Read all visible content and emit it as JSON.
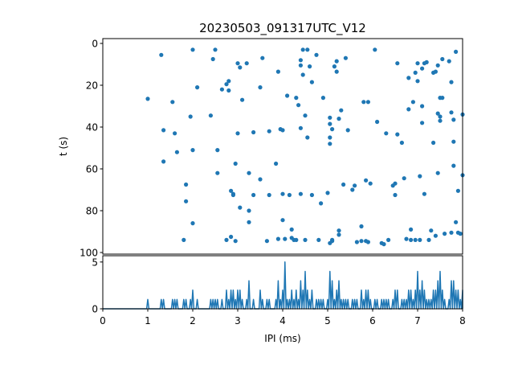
{
  "chart_data": [
    {
      "type": "scatter",
      "title": "20230503_091317UTC_V12",
      "xlabel": "",
      "ylabel": "t (s)",
      "xlim": [
        0,
        8
      ],
      "ylim": [
        100,
        0
      ],
      "y_inverted": true,
      "grid": false,
      "yticks": [
        0,
        20,
        40,
        60,
        80,
        100
      ],
      "marker_color": "#1f77b4",
      "points": [
        [
          1.0,
          26.5
        ],
        [
          1.3,
          5.5
        ],
        [
          1.35,
          41.5
        ],
        [
          1.35,
          56.5
        ],
        [
          1.55,
          28
        ],
        [
          1.6,
          43
        ],
        [
          1.65,
          52
        ],
        [
          1.8,
          94
        ],
        [
          1.85,
          67.5
        ],
        [
          1.85,
          75.5
        ],
        [
          1.95,
          35
        ],
        [
          2.0,
          3
        ],
        [
          2.0,
          51
        ],
        [
          2.0,
          86
        ],
        [
          2.1,
          21
        ],
        [
          2.4,
          34.5
        ],
        [
          2.45,
          7.5
        ],
        [
          2.5,
          3
        ],
        [
          2.55,
          51
        ],
        [
          2.55,
          62
        ],
        [
          2.65,
          22
        ],
        [
          2.75,
          19.5
        ],
        [
          2.75,
          94
        ],
        [
          2.8,
          18
        ],
        [
          2.8,
          22.5
        ],
        [
          2.85,
          70.5
        ],
        [
          2.85,
          92.5
        ],
        [
          2.9,
          72.5
        ],
        [
          2.9,
          72
        ],
        [
          2.95,
          57.5
        ],
        [
          2.95,
          94.5
        ],
        [
          3.0,
          9.5
        ],
        [
          3.0,
          43
        ],
        [
          3.05,
          11.5
        ],
        [
          3.05,
          78.5
        ],
        [
          3.1,
          27
        ],
        [
          3.2,
          9.5
        ],
        [
          3.25,
          62
        ],
        [
          3.25,
          80
        ],
        [
          3.25,
          85.5
        ],
        [
          3.35,
          42.5
        ],
        [
          3.35,
          72.5
        ],
        [
          3.5,
          21
        ],
        [
          3.5,
          65
        ],
        [
          3.55,
          7
        ],
        [
          3.65,
          94.5
        ],
        [
          3.7,
          42
        ],
        [
          3.7,
          72.5
        ],
        [
          3.85,
          57.5
        ],
        [
          3.9,
          13.5
        ],
        [
          3.9,
          93.5
        ],
        [
          3.95,
          41
        ],
        [
          4.0,
          41.5
        ],
        [
          4.0,
          72
        ],
        [
          4.0,
          84.5
        ],
        [
          4.05,
          93.5
        ],
        [
          4.1,
          25
        ],
        [
          4.15,
          72.5
        ],
        [
          4.2,
          89
        ],
        [
          4.2,
          93
        ],
        [
          4.25,
          94
        ],
        [
          4.3,
          26
        ],
        [
          4.3,
          94
        ],
        [
          4.35,
          29.5
        ],
        [
          4.4,
          8
        ],
        [
          4.4,
          10.5
        ],
        [
          4.4,
          40.5
        ],
        [
          4.4,
          72
        ],
        [
          4.45,
          3
        ],
        [
          4.45,
          15
        ],
        [
          4.5,
          34.5
        ],
        [
          4.5,
          94
        ],
        [
          4.55,
          3
        ],
        [
          4.55,
          45
        ],
        [
          4.6,
          11
        ],
        [
          4.65,
          18.5
        ],
        [
          4.65,
          72.5
        ],
        [
          4.75,
          5.5
        ],
        [
          4.8,
          94
        ],
        [
          4.85,
          76.5
        ],
        [
          4.9,
          26
        ],
        [
          5.0,
          71.5
        ],
        [
          5.05,
          95.5
        ],
        [
          5.05,
          35.5
        ],
        [
          5.05,
          38.5
        ],
        [
          5.05,
          45
        ],
        [
          5.05,
          48
        ],
        [
          5.1,
          41
        ],
        [
          5.1,
          94
        ],
        [
          5.1,
          94.5
        ],
        [
          5.15,
          11
        ],
        [
          5.2,
          8.5
        ],
        [
          5.2,
          13.5
        ],
        [
          5.25,
          36
        ],
        [
          5.25,
          89.5
        ],
        [
          5.25,
          91.5
        ],
        [
          5.3,
          32
        ],
        [
          5.35,
          67.5
        ],
        [
          5.4,
          7
        ],
        [
          5.45,
          41.5
        ],
        [
          5.55,
          70
        ],
        [
          5.6,
          68
        ],
        [
          5.65,
          95
        ],
        [
          5.75,
          94.5
        ],
        [
          5.75,
          87.5
        ],
        [
          5.8,
          28
        ],
        [
          5.85,
          65.5
        ],
        [
          5.85,
          94.5
        ],
        [
          5.9,
          95
        ],
        [
          5.9,
          28
        ],
        [
          5.95,
          67
        ],
        [
          6.05,
          3
        ],
        [
          6.1,
          37.5
        ],
        [
          6.2,
          95.5
        ],
        [
          6.25,
          96
        ],
        [
          6.3,
          43
        ],
        [
          6.35,
          94
        ],
        [
          6.45,
          68
        ],
        [
          6.5,
          72.5
        ],
        [
          6.5,
          67
        ],
        [
          6.55,
          43.5
        ],
        [
          6.55,
          9.5
        ],
        [
          6.65,
          47.5
        ],
        [
          6.7,
          64.5
        ],
        [
          6.75,
          93.5
        ],
        [
          6.8,
          16.5
        ],
        [
          6.8,
          31.5
        ],
        [
          6.85,
          89
        ],
        [
          6.85,
          94
        ],
        [
          6.9,
          28
        ],
        [
          6.95,
          14
        ],
        [
          6.95,
          94
        ],
        [
          7.0,
          9.5
        ],
        [
          7.0,
          18
        ],
        [
          7.05,
          63.5
        ],
        [
          7.05,
          94
        ],
        [
          7.1,
          12
        ],
        [
          7.1,
          30
        ],
        [
          7.1,
          38
        ],
        [
          7.15,
          9.5
        ],
        [
          7.15,
          72
        ],
        [
          7.2,
          9
        ],
        [
          7.25,
          94
        ],
        [
          7.3,
          89.5
        ],
        [
          7.35,
          47.5
        ],
        [
          7.35,
          14
        ],
        [
          7.4,
          13.5
        ],
        [
          7.4,
          92
        ],
        [
          7.45,
          62
        ],
        [
          7.45,
          10.5
        ],
        [
          7.45,
          33.5
        ],
        [
          7.5,
          35
        ],
        [
          7.5,
          37
        ],
        [
          7.5,
          26
        ],
        [
          7.55,
          26
        ],
        [
          7.55,
          7.5
        ],
        [
          7.6,
          91
        ],
        [
          7.7,
          8.5
        ],
        [
          7.75,
          18.5
        ],
        [
          7.75,
          33
        ],
        [
          7.75,
          90.5
        ],
        [
          7.8,
          58.5
        ],
        [
          7.8,
          36.5
        ],
        [
          7.8,
          47
        ],
        [
          7.85,
          4
        ],
        [
          7.85,
          85.5
        ],
        [
          7.9,
          70.5
        ],
        [
          7.9,
          90.5
        ],
        [
          7.95,
          91
        ],
        [
          8.0,
          34
        ],
        [
          8.0,
          63
        ]
      ]
    },
    {
      "type": "line",
      "xlabel": "IPI (ms)",
      "ylabel": "",
      "xlim": [
        0,
        8
      ],
      "ylim": [
        0,
        5.5
      ],
      "grid": false,
      "xticks": [
        0,
        1,
        2,
        3,
        4,
        5,
        6,
        7,
        8
      ],
      "yticks": [
        0,
        5
      ],
      "line_color": "#1f77b4",
      "bin_width_ms": 0.025,
      "spikes": [
        [
          1.0,
          1
        ],
        [
          1.3,
          1
        ],
        [
          1.35,
          1
        ],
        [
          1.55,
          1
        ],
        [
          1.6,
          1
        ],
        [
          1.65,
          1
        ],
        [
          1.8,
          1
        ],
        [
          1.85,
          1
        ],
        [
          1.95,
          1
        ],
        [
          2.0,
          2
        ],
        [
          2.1,
          1
        ],
        [
          2.4,
          1
        ],
        [
          2.45,
          1
        ],
        [
          2.5,
          1
        ],
        [
          2.55,
          1
        ],
        [
          2.65,
          1
        ],
        [
          2.75,
          2
        ],
        [
          2.8,
          1
        ],
        [
          2.85,
          2
        ],
        [
          2.9,
          2
        ],
        [
          2.95,
          1
        ],
        [
          3.0,
          2
        ],
        [
          3.05,
          2
        ],
        [
          3.1,
          1
        ],
        [
          3.2,
          1
        ],
        [
          3.25,
          3
        ],
        [
          3.35,
          1
        ],
        [
          3.5,
          2
        ],
        [
          3.55,
          1
        ],
        [
          3.65,
          1
        ],
        [
          3.7,
          1
        ],
        [
          3.85,
          1
        ],
        [
          3.9,
          3
        ],
        [
          3.95,
          1
        ],
        [
          4.0,
          2
        ],
        [
          4.05,
          5
        ],
        [
          4.1,
          1
        ],
        [
          4.15,
          1
        ],
        [
          4.2,
          2
        ],
        [
          4.25,
          1
        ],
        [
          4.3,
          2
        ],
        [
          4.35,
          1
        ],
        [
          4.4,
          3
        ],
        [
          4.45,
          2
        ],
        [
          4.5,
          4
        ],
        [
          4.55,
          2
        ],
        [
          4.6,
          1
        ],
        [
          4.65,
          2
        ],
        [
          4.75,
          1
        ],
        [
          4.8,
          1
        ],
        [
          4.85,
          1
        ],
        [
          4.9,
          1
        ],
        [
          5.0,
          1
        ],
        [
          5.05,
          4
        ],
        [
          5.1,
          3
        ],
        [
          5.15,
          1
        ],
        [
          5.2,
          2
        ],
        [
          5.25,
          3
        ],
        [
          5.3,
          1
        ],
        [
          5.35,
          1
        ],
        [
          5.4,
          1
        ],
        [
          5.45,
          1
        ],
        [
          5.55,
          1
        ],
        [
          5.6,
          1
        ],
        [
          5.65,
          1
        ],
        [
          5.75,
          2
        ],
        [
          5.8,
          1
        ],
        [
          5.85,
          2
        ],
        [
          5.9,
          2
        ],
        [
          5.95,
          1
        ],
        [
          6.05,
          1
        ],
        [
          6.1,
          1
        ],
        [
          6.2,
          1
        ],
        [
          6.25,
          1
        ],
        [
          6.3,
          1
        ],
        [
          6.35,
          1
        ],
        [
          6.45,
          1
        ],
        [
          6.5,
          2
        ],
        [
          6.55,
          2
        ],
        [
          6.65,
          1
        ],
        [
          6.7,
          1
        ],
        [
          6.75,
          1
        ],
        [
          6.8,
          2
        ],
        [
          6.85,
          2
        ],
        [
          6.9,
          1
        ],
        [
          6.95,
          2
        ],
        [
          7.0,
          4
        ],
        [
          7.05,
          2
        ],
        [
          7.1,
          3
        ],
        [
          7.15,
          2
        ],
        [
          7.2,
          1
        ],
        [
          7.25,
          1
        ],
        [
          7.3,
          1
        ],
        [
          7.35,
          2
        ],
        [
          7.4,
          2
        ],
        [
          7.45,
          3
        ],
        [
          7.5,
          4
        ],
        [
          7.55,
          2
        ],
        [
          7.6,
          1
        ],
        [
          7.7,
          1
        ],
        [
          7.75,
          3
        ],
        [
          7.8,
          3
        ],
        [
          7.85,
          2
        ],
        [
          7.9,
          2
        ],
        [
          7.95,
          1
        ],
        [
          8.0,
          2
        ]
      ]
    }
  ]
}
